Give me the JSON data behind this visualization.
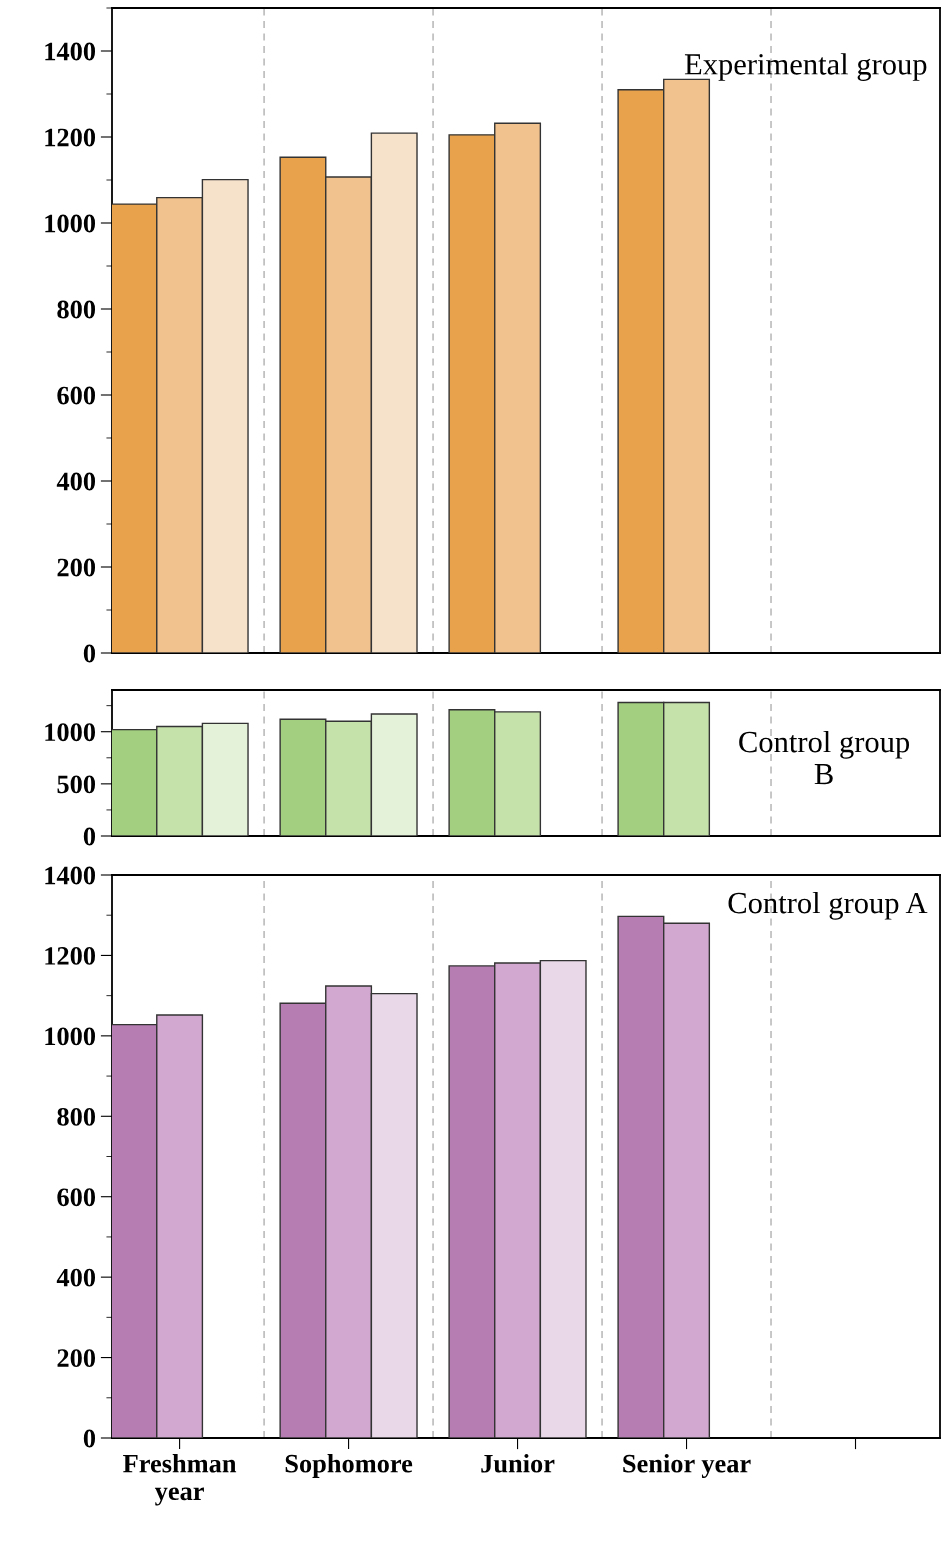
{
  "chart_data": [
    {
      "type": "bar",
      "categories": [
        null,
        null,
        null,
        null,
        null
      ],
      "ylim": [
        0,
        1500
      ],
      "yticks": [
        0,
        200,
        400,
        600,
        800,
        1000,
        1200,
        1400
      ],
      "tick_labels": "y",
      "grid": false,
      "annotations": [
        "Experimental group"
      ],
      "series": [
        {
          "color": "#e9a24c",
          "values": [
            1044,
            1153,
            1205,
            1310,
            null
          ]
        },
        {
          "color": "#f2c28e",
          "values": [
            1059,
            1107,
            1232,
            1334,
            null
          ]
        },
        {
          "color": "#f6e2cb",
          "values": [
            1101,
            1209,
            null,
            null,
            null
          ]
        }
      ]
    },
    {
      "type": "bar",
      "categories": [
        null,
        null,
        null,
        null,
        null
      ],
      "ylim": [
        0,
        1400
      ],
      "yticks": [
        0,
        500,
        1000
      ],
      "tick_labels": "y",
      "grid": false,
      "annotations": [
        "Control group\nB"
      ],
      "series": [
        {
          "color": "#a3cf80",
          "values": [
            1020,
            1120,
            1210,
            1280,
            null
          ]
        },
        {
          "color": "#c6e2ab",
          "values": [
            1050,
            1100,
            1190,
            1280,
            null
          ]
        },
        {
          "color": "#e5f2da",
          "values": [
            1080,
            1170,
            null,
            null,
            null
          ]
        }
      ]
    },
    {
      "type": "bar",
      "categories": [
        "Freshman\nyear",
        "Sophomore",
        "Junior",
        "Senior year",
        null
      ],
      "ylim": [
        0,
        1400
      ],
      "yticks": [
        0,
        200,
        400,
        600,
        800,
        1000,
        1200,
        1400
      ],
      "grid": false,
      "annotations": [
        "Control group A"
      ],
      "series": [
        {
          "color": "#b67db3",
          "values": [
            1028,
            1081,
            1174,
            1297,
            null
          ]
        },
        {
          "color": "#d3a8d0",
          "values": [
            1052,
            1124,
            1181,
            1280,
            null
          ]
        },
        {
          "color": "#e8d8e8",
          "values": [
            null,
            1105,
            1187,
            null,
            null
          ]
        }
      ]
    }
  ]
}
